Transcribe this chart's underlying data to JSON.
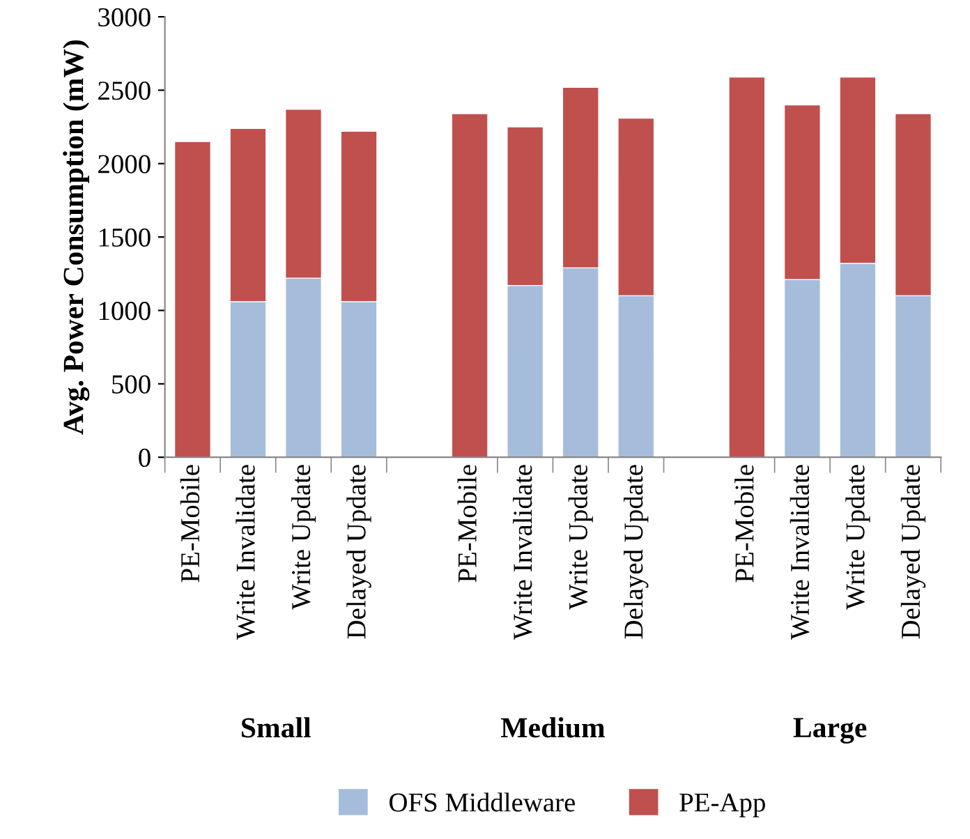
{
  "chart_data": {
    "type": "bar",
    "stacked": true,
    "ylabel": "Avg. Power Consumption (mW)",
    "categories": [
      "PE-Mobile",
      "Write Invalidate",
      "Write Update",
      "Delayed Update",
      "PE-Mobile",
      "Write Invalidate",
      "Write Update",
      "Delayed Update",
      "PE-Mobile",
      "Write Invalidate",
      "Write Update",
      "Delayed Update"
    ],
    "series": [
      {
        "name": "OFS Middleware",
        "color": "#a5bddb",
        "values": [
          0,
          1060,
          1220,
          1060,
          0,
          1170,
          1290,
          1100,
          0,
          1210,
          1320,
          1100
        ]
      },
      {
        "name": "PE-App",
        "color": "#c0504d",
        "values": [
          2150,
          1180,
          1150,
          1160,
          2340,
          1080,
          1230,
          1210,
          2590,
          1190,
          1270,
          1240
        ]
      }
    ],
    "annotations": [
      "Small",
      "Medium",
      "Large"
    ],
    "ylim": [
      0,
      3000
    ],
    "yticks": [
      0,
      500,
      1000,
      1500,
      2000,
      2500,
      3000
    ],
    "grid": false,
    "legend": "bottom"
  }
}
